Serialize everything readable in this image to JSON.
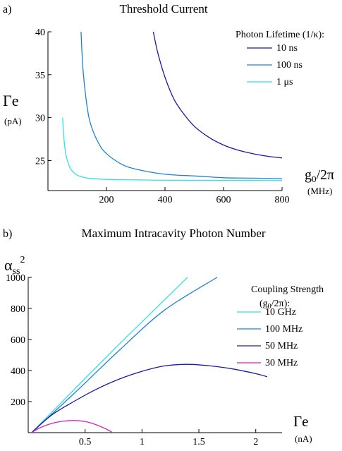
{
  "chart_data": [
    {
      "panel_label": "a)",
      "type": "line",
      "title": "Threshold Current",
      "xlabel": "g0/2π",
      "xunit": "(MHz)",
      "ylabel": "Γe",
      "yunit": "(pA)",
      "xlim": [
        0,
        800
      ],
      "ylim": [
        21.5,
        40
      ],
      "xticks": [
        200,
        400,
        600,
        800
      ],
      "yticks": [
        25,
        30,
        35,
        40
      ],
      "legend_title": "Photon Lifetime (1/κ):",
      "legend_position": "top-right",
      "grid": false,
      "series": [
        {
          "name": "10  ns",
          "color": "#1a1aa6",
          "x": [
            360,
            375,
            400,
            430,
            460,
            500,
            550,
            600,
            650,
            700,
            750,
            800
          ],
          "y": [
            40.0,
            37.6,
            34.7,
            32.2,
            30.6,
            29.0,
            27.7,
            26.8,
            26.2,
            25.8,
            25.5,
            25.3
          ]
        },
        {
          "name": "100 ns",
          "color": "#1e82d2",
          "x": [
            113,
            120,
            135,
            150,
            175,
            200,
            250,
            300,
            400,
            500,
            600,
            700,
            800
          ],
          "y": [
            40.0,
            35.5,
            31.0,
            28.8,
            26.9,
            25.8,
            24.6,
            24.0,
            23.4,
            23.2,
            23.0,
            22.95,
            22.9
          ]
        },
        {
          "name": "1 μs",
          "color": "#33e0e6",
          "x": [
            50,
            55,
            62,
            70,
            80,
            95,
            110,
            130,
            150,
            200,
            300,
            400,
            600,
            800
          ],
          "y": [
            30.0,
            27.4,
            25.6,
            24.6,
            23.9,
            23.4,
            23.15,
            22.98,
            22.9,
            22.8,
            22.75,
            22.7,
            22.68,
            22.67
          ]
        }
      ]
    },
    {
      "panel_label": "b)",
      "type": "line",
      "title": "Maximum Intracavity Photon Number",
      "xlabel": "Γe",
      "xunit": "(nA)",
      "ylabel": "αss²",
      "xlim": [
        0,
        2.2
      ],
      "ylim": [
        0,
        1000
      ],
      "xticks": [
        0.5,
        1,
        1.5,
        2
      ],
      "yticks": [
        200,
        400,
        600,
        800,
        1000
      ],
      "legend_title": "Coupling Strength",
      "legend_subtitle": "(g0/2π):",
      "legend_position": "top-right",
      "grid": false,
      "series": [
        {
          "name": "10  GHz",
          "color": "#33e0e6",
          "x": [
            0.03,
            0.4,
            0.8,
            1.1,
            1.4
          ],
          "y": [
            0,
            275,
            570,
            785,
            1000
          ]
        },
        {
          "name": "100 MHz",
          "color": "#1e82d2",
          "x": [
            0.03,
            0.4,
            0.8,
            1.2,
            1.66
          ],
          "y": [
            0,
            250,
            530,
            790,
            1000
          ]
        },
        {
          "name": "50 MHz",
          "color": "#1a1aa6",
          "x": [
            0.03,
            0.2,
            0.4,
            0.6,
            0.8,
            1.0,
            1.2,
            1.4,
            1.6,
            1.8,
            2.0,
            2.1
          ],
          "y": [
            0,
            110,
            200,
            280,
            345,
            395,
            430,
            440,
            430,
            410,
            380,
            360
          ]
        },
        {
          "name": "30 MHz",
          "color": "#cc22cc",
          "x": [
            0.03,
            0.1,
            0.2,
            0.3,
            0.4,
            0.5,
            0.6,
            0.7,
            0.74
          ],
          "y": [
            0,
            30,
            58,
            73,
            78,
            72,
            50,
            18,
            0
          ]
        }
      ]
    }
  ]
}
